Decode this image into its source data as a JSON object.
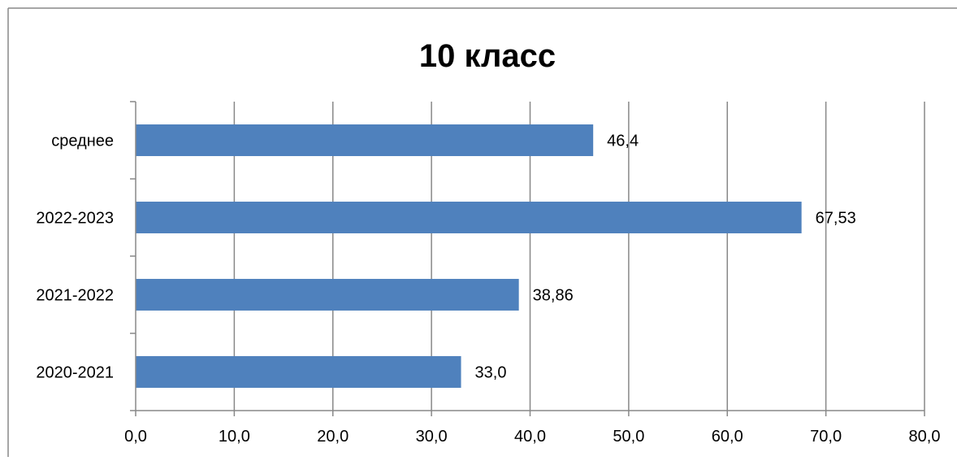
{
  "chart_data": {
    "type": "bar",
    "orientation": "horizontal",
    "title": "10 класс",
    "categories": [
      "среднее",
      "2022-2023",
      "2021-2022",
      "2020-2021"
    ],
    "values": [
      46.4,
      67.53,
      38.86,
      33.0
    ],
    "data_labels": [
      "46,4",
      "67,53",
      "38,86",
      "33,0"
    ],
    "xlim": [
      0,
      80
    ],
    "x_ticks": [
      0,
      10,
      20,
      30,
      40,
      50,
      60,
      70,
      80
    ],
    "x_tick_labels": [
      "0,0",
      "10,0",
      "20,0",
      "30,0",
      "40,0",
      "50,0",
      "60,0",
      "70,0",
      "80,0"
    ],
    "grid": true,
    "legend": "none",
    "bar_color": "#4F81BD"
  }
}
